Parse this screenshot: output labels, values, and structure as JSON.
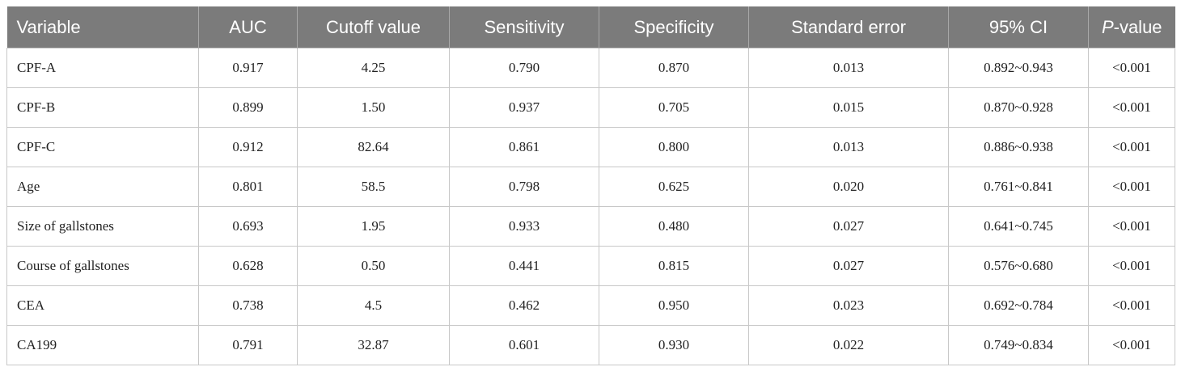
{
  "table": {
    "header": [
      "Variable",
      "AUC",
      "Cutoff value",
      "Sensitivity",
      "Specificity",
      "Standard error",
      "95% CI"
    ],
    "p_header": {
      "italic": "P",
      "rest": "-value"
    },
    "rows": [
      [
        "CPF-A",
        "0.917",
        "4.25",
        "0.790",
        "0.870",
        "0.013",
        "0.892~0.943",
        "<0.001"
      ],
      [
        "CPF-B",
        "0.899",
        "1.50",
        "0.937",
        "0.705",
        "0.015",
        "0.870~0.928",
        "<0.001"
      ],
      [
        "CPF-C",
        "0.912",
        "82.64",
        "0.861",
        "0.800",
        "0.013",
        "0.886~0.938",
        "<0.001"
      ],
      [
        "Age",
        "0.801",
        "58.5",
        "0.798",
        "0.625",
        "0.020",
        "0.761~0.841",
        "<0.001"
      ],
      [
        "Size of gallstones",
        "0.693",
        "1.95",
        "0.933",
        "0.480",
        "0.027",
        "0.641~0.745",
        "<0.001"
      ],
      [
        "Course of gallstones",
        "0.628",
        "0.50",
        "0.441",
        "0.815",
        "0.027",
        "0.576~0.680",
        "<0.001"
      ],
      [
        "CEA",
        "0.738",
        "4.5",
        "0.462",
        "0.950",
        "0.023",
        "0.692~0.784",
        "<0.001"
      ],
      [
        "CA199",
        "0.791",
        "32.87",
        "0.601",
        "0.930",
        "0.022",
        "0.749~0.834",
        "<0.001"
      ]
    ]
  }
}
